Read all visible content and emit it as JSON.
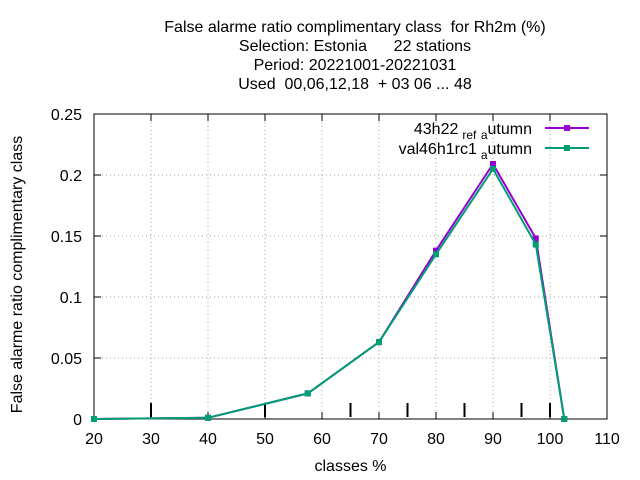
{
  "chart_data": {
    "type": "line",
    "title_lines": [
      "False alarme ratio complimentary class  for Rh2m (%)",
      "Selection: Estonia      22 stations",
      "Period: 20221001-20221031",
      "Used  00,06,12,18  + 03 06 ... 48"
    ],
    "xlabel": "classes %",
    "ylabel": "False alarme ratio complimentary class",
    "xlim": [
      20,
      110
    ],
    "ylim": [
      0,
      0.25
    ],
    "xticks": [
      20,
      30,
      40,
      50,
      60,
      70,
      80,
      90,
      100,
      110
    ],
    "yticks": [
      0,
      0.05,
      0.1,
      0.15,
      0.2,
      0.25
    ],
    "xtick_labels": [
      "20",
      "30",
      "40",
      "50",
      "60",
      "70",
      "80",
      "90",
      "100",
      "110"
    ],
    "ytick_labels": [
      "0",
      "0.05",
      "0.1",
      "0.15",
      "0.2",
      "0.25"
    ],
    "grid": true,
    "legend_position": "top-right",
    "minor_marks_x": [
      30,
      50,
      65,
      75,
      85,
      95,
      100
    ],
    "series": [
      {
        "name_parts": [
          "43h22",
          "ref",
          "a",
          "utumn"
        ],
        "color": "#9400d3",
        "x": [
          20,
          40,
          57.5,
          70,
          80,
          90,
          97.5,
          102.5
        ],
        "y": [
          0.0,
          0.001,
          0.021,
          0.063,
          0.138,
          0.209,
          0.148,
          0.0
        ]
      },
      {
        "name_parts": [
          "val46h1rc1",
          "",
          "a",
          "utumn"
        ],
        "color": "#009e73",
        "x": [
          20,
          40,
          57.5,
          70,
          80,
          90,
          97.5,
          102.5
        ],
        "y": [
          0.0,
          0.001,
          0.021,
          0.063,
          0.135,
          0.205,
          0.143,
          0.0
        ]
      }
    ]
  }
}
